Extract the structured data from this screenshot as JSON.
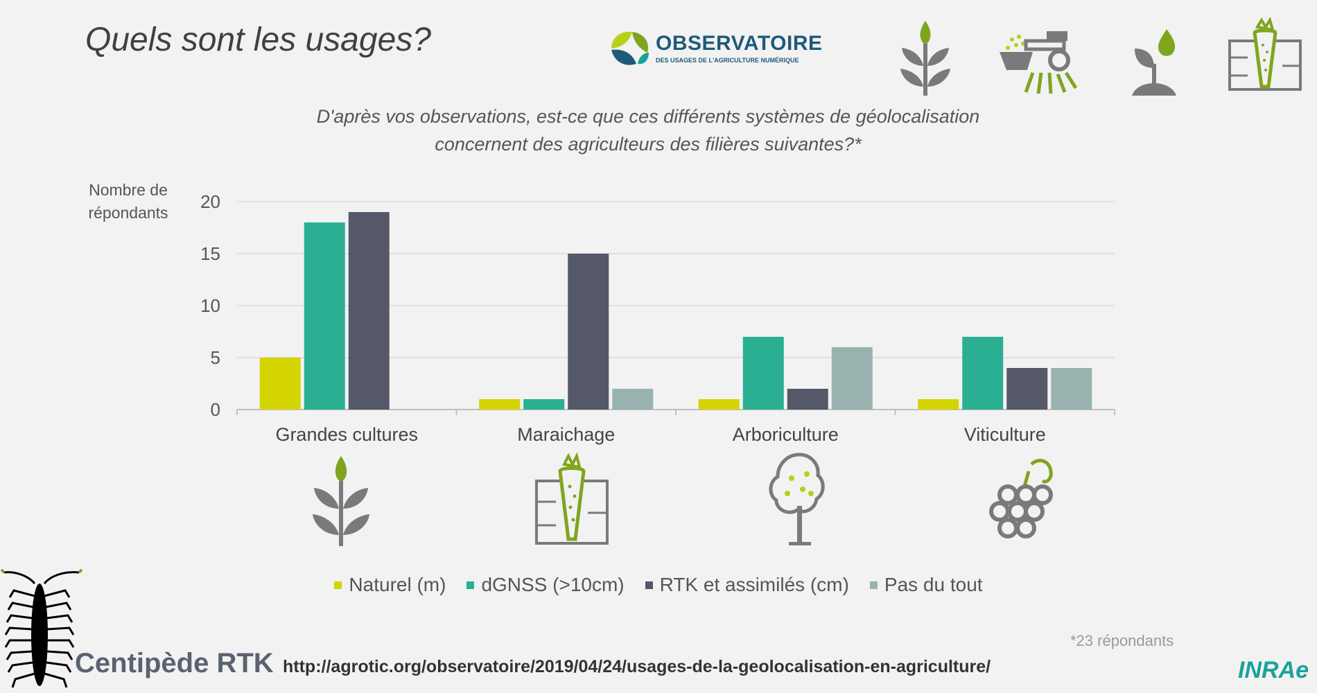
{
  "slide": {
    "title": "Quels sont les usages?",
    "subtitle_line1": "D'après vos observations, est-ce que ces différents systèmes de géolocalisation",
    "subtitle_line2": "concernent des agriculteurs des filières suivantes?*",
    "respondents_note": "*23 répondants",
    "source_url": "http://agrotic.org/observatoire/2019/04/24/usages-de-la-geolocalisation-en-agriculture/",
    "brand": "Centipède RTK",
    "institution_logo": "INRAe",
    "observatory_logo": {
      "name": "OBSERVATOIRE",
      "subtitle": "DES USAGES DE L'AGRICULTURE NUMÉRIQUE"
    },
    "icons": [
      "crop-sprout-icon",
      "sprayer-tractor-icon",
      "plant-water-icon",
      "carrot-soil-icon",
      "tree-icon",
      "grapes-icon"
    ]
  },
  "chart_data": {
    "type": "bar",
    "ylabel_line1": "Nombre de",
    "ylabel_line2": "répondants",
    "ylim": [
      0,
      20
    ],
    "yticks": [
      0,
      5,
      10,
      15,
      20
    ],
    "grid": true,
    "legend_position": "bottom",
    "categories": [
      "Grandes cultures",
      "Maraichage",
      "Arboriculture",
      "Viticulture"
    ],
    "series": [
      {
        "name": "Naturel (m)",
        "color": "#d4d400",
        "values": [
          5,
          1,
          1,
          1
        ]
      },
      {
        "name": "dGNSS (>10cm)",
        "color": "#2aaf93",
        "values": [
          18,
          1,
          7,
          7
        ]
      },
      {
        "name": "RTK et assimilés (cm)",
        "color": "#545869",
        "values": [
          19,
          15,
          2,
          4
        ]
      },
      {
        "name": "Pas du tout",
        "color": "#98b2b0",
        "values": [
          0,
          2,
          6,
          4
        ]
      }
    ]
  }
}
